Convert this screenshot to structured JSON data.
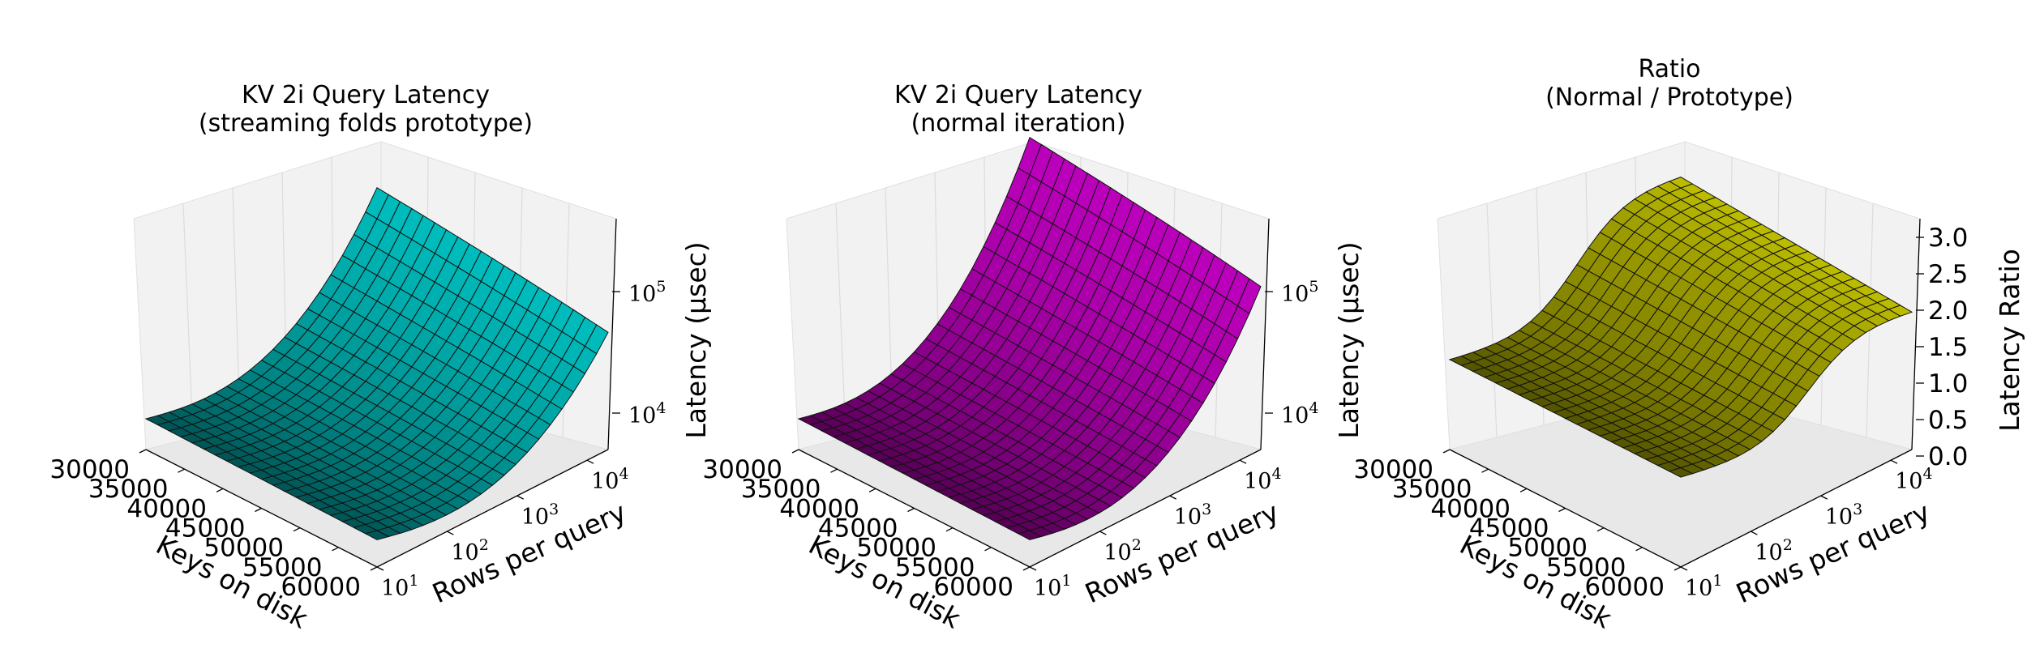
{
  "chart_data": [
    {
      "type": "surface",
      "title_line1": "KV 2i Query Latency",
      "title_line2": "(streaming folds prototype)",
      "xlabel": "Keys on disk",
      "ylabel": "Rows per query",
      "zlabel": "Latency (μsec)",
      "x_ticks": [
        "30000",
        "35000",
        "40000",
        "45000",
        "50000",
        "55000",
        "60000"
      ],
      "y_ticks": [
        "10",
        "10",
        "10",
        "10"
      ],
      "y_tick_exps": [
        "1",
        "2",
        "3",
        "4"
      ],
      "z_ticks": [
        "10",
        "10"
      ],
      "z_tick_exps": [
        "4",
        "5"
      ],
      "z_scale": "log",
      "xlim": [
        30000,
        60000
      ],
      "ylim_log10": [
        1,
        4.3
      ],
      "z_corners": {
        "low_keys_low_rows": 8500,
        "high_keys_low_rows": 8000,
        "low_keys_high_rows": 160000,
        "high_keys_high_rows": 100000
      },
      "color": "#00c0c0"
    },
    {
      "type": "surface",
      "title_line1": "KV 2i Query Latency",
      "title_line2": "(normal iteration)",
      "xlabel": "Keys on disk",
      "ylabel": "Rows per query",
      "zlabel": "Latency (μsec)",
      "x_ticks": [
        "30000",
        "35000",
        "40000",
        "45000",
        "50000",
        "55000",
        "60000"
      ],
      "y_ticks": [
        "10",
        "10",
        "10",
        "10"
      ],
      "y_tick_exps": [
        "1",
        "2",
        "3",
        "4"
      ],
      "z_ticks": [
        "10",
        "10"
      ],
      "z_tick_exps": [
        "4",
        "5"
      ],
      "z_scale": "log",
      "xlim": [
        30000,
        60000
      ],
      "ylim_log10": [
        1,
        4.3
      ],
      "z_corners": {
        "low_keys_low_rows": 8500,
        "high_keys_low_rows": 8000,
        "low_keys_high_rows": 380000,
        "high_keys_high_rows": 220000
      },
      "color": "#c000c0"
    },
    {
      "type": "surface",
      "title_line1": "Ratio",
      "title_line2": "(Normal / Prototype)",
      "xlabel": "Keys on disk",
      "ylabel": "Rows per query",
      "zlabel": "Latency Ratio",
      "x_ticks": [
        "30000",
        "35000",
        "40000",
        "45000",
        "50000",
        "55000",
        "60000"
      ],
      "y_ticks": [
        "10",
        "10",
        "10",
        "10"
      ],
      "y_tick_exps": [
        "1",
        "2",
        "3",
        "4"
      ],
      "z_ticks": [
        "0.0",
        "0.5",
        "1.0",
        "1.5",
        "2.0",
        "2.5",
        "3.0"
      ],
      "z_scale": "linear",
      "zlim": [
        0,
        3
      ],
      "z_corners": {
        "low_keys_low_rows": 1.0,
        "high_keys_low_rows": 1.0,
        "low_keys_high_rows": 2.4,
        "high_keys_high_rows": 2.2
      },
      "color": "#c0c000"
    }
  ]
}
